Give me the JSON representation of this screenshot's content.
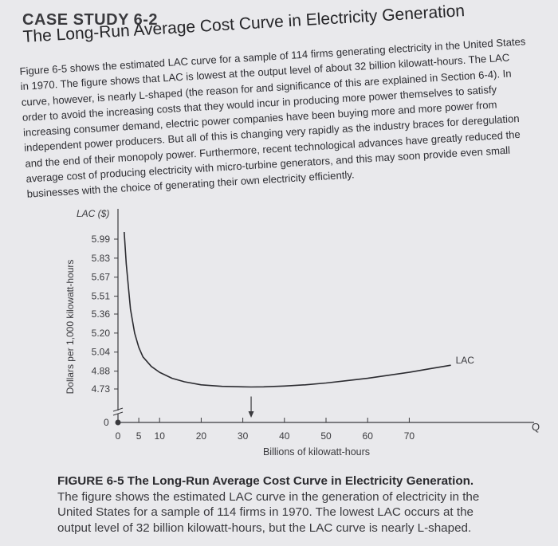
{
  "header": {
    "kicker": "CASE STUDY 6-2",
    "title": "The Long-Run Average Cost Curve in Electricity Generation"
  },
  "body_lines": [
    "Figure 6-5 shows the estimated LAC curve for a sample of 114 firms generating electricity in the United States",
    "in 1970. The figure shows that LAC is lowest at the output level of about 32 billion kilowatt-hours. The LAC",
    "curve, however, is nearly L-shaped (the reason for and significance of this are explained in Section 6-4). In",
    "order to avoid the increasing costs that they would incur in producing more power themselves to satisfy",
    "increasing consumer demand, electric power companies have been buying more and more power from",
    "independent power producers. But all of this is changing very rapidly as the industry braces for deregulation",
    "and the end of their monopoly power. Furthermore, recent technological advances have greatly reduced the",
    "average cost of producing electricity with micro-turbine generators, and this may soon provide even small",
    "businesses with the choice of generating their own electricity efficiently."
  ],
  "chart_data": {
    "type": "line",
    "y_axis_title": "LAC ($)",
    "y_label": "Dollars per 1,000 kilowatt-hours",
    "xlabel": "Billions of kilowatt-hours",
    "x_axis_end_label": "Q",
    "origin_label": "0",
    "y_ticks": [
      "5.99",
      "5.83",
      "5.67",
      "5.51",
      "5.36",
      "5.20",
      "5.04",
      "4.88",
      "4.73"
    ],
    "y_tick_values": [
      5.99,
      5.83,
      5.67,
      5.51,
      5.36,
      5.2,
      5.04,
      4.88,
      4.73
    ],
    "x_ticks": [
      "0",
      "5",
      "10",
      "20",
      "30",
      "40",
      "50",
      "60",
      "70"
    ],
    "x_tick_values": [
      0,
      5,
      10,
      20,
      30,
      40,
      50,
      60,
      70
    ],
    "ylim": [
      4.6,
      6.1
    ],
    "xlim": [
      0,
      100
    ],
    "series": [
      {
        "name": "LAC",
        "x": [
          1.5,
          2,
          3,
          4,
          5,
          6,
          8,
          10,
          13,
          16,
          20,
          25,
          30,
          32,
          35,
          40,
          45,
          50,
          55,
          60,
          65,
          70,
          75,
          80
        ],
        "values": [
          6.05,
          5.78,
          5.4,
          5.2,
          5.08,
          5.0,
          4.92,
          4.87,
          4.82,
          4.79,
          4.765,
          4.752,
          4.748,
          4.747,
          4.748,
          4.755,
          4.765,
          4.78,
          4.8,
          4.82,
          4.845,
          4.87,
          4.9,
          4.93
        ]
      }
    ],
    "curve_label": "LAC",
    "minimum_x": 32
  },
  "caption": {
    "label": "FIGURE 6-5 The Long-Run Average Cost Curve in Electricity Generation.",
    "lines": [
      "The figure shows the estimated LAC curve in the generation of electricity in the",
      "United States for a sample of 114 firms in 1970. The lowest LAC occurs at the",
      "output level of 32 billion kilowatt-hours, but the LAC curve is nearly L-shaped."
    ]
  }
}
